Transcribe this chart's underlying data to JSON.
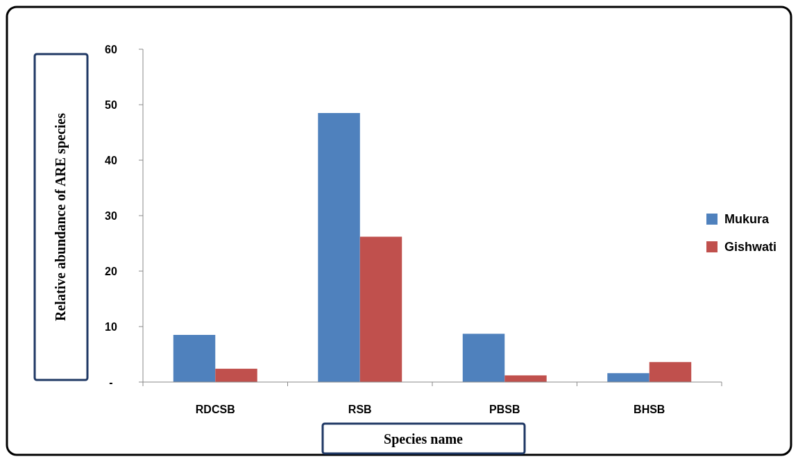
{
  "chart_data": {
    "type": "bar",
    "xlabel": "Species name",
    "ylabel": "Relative abundance of ARE species",
    "categories": [
      "RDCSB",
      "RSB",
      "PBSB",
      "BHSB"
    ],
    "series": [
      {
        "name": "Mukura",
        "color": "#4f81bd",
        "values": [
          8.5,
          48.5,
          8.7,
          1.6
        ]
      },
      {
        "name": "Gishwati",
        "color": "#c0504d",
        "values": [
          2.4,
          26.2,
          1.2,
          3.6
        ]
      }
    ],
    "ylim": [
      0,
      60
    ],
    "yticks": [
      {
        "value": 0,
        "label": "-"
      },
      10,
      20,
      30,
      40,
      50,
      60
    ],
    "grid": false,
    "legend": "right"
  }
}
